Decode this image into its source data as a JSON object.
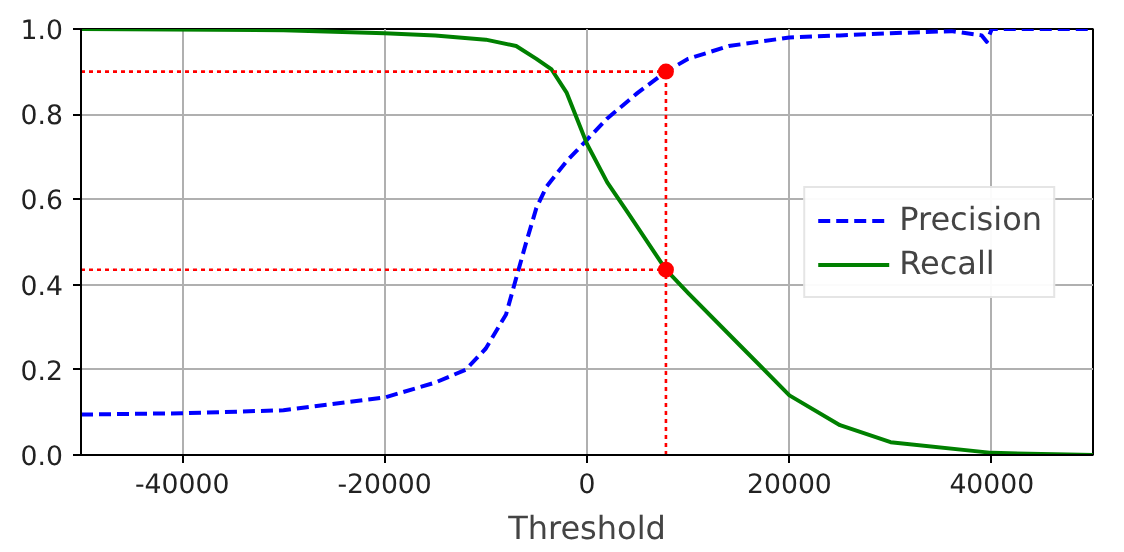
{
  "chart_data": {
    "type": "line",
    "xlabel": "Threshold",
    "xlim": [
      -50000,
      50000
    ],
    "ylim": [
      0,
      1
    ],
    "xticks": [
      -40000,
      -20000,
      0,
      20000,
      40000
    ],
    "yticks": [
      {
        "value": 0,
        "label": "0.0"
      },
      0.2,
      0.4,
      0.6,
      0.8,
      {
        "value": 1,
        "label": "1.0"
      }
    ],
    "grid": true,
    "legend": "right",
    "marker": "none",
    "series": [
      {
        "name": "Precision",
        "color": "#0000ff",
        "line_style": "dashed",
        "x": [
          -50000,
          -40000,
          -30000,
          -20000,
          -15000,
          -12000,
          -10000,
          -8000,
          -6000,
          -5000,
          -4000,
          -2000,
          0,
          2000,
          5000,
          7800,
          10000,
          14000,
          20000,
          25000,
          30000,
          36000,
          39000,
          39500,
          40000,
          50000
        ],
        "values": [
          0.095,
          0.098,
          0.105,
          0.135,
          0.17,
          0.2,
          0.25,
          0.33,
          0.5,
          0.58,
          0.63,
          0.69,
          0.74,
          0.79,
          0.85,
          0.9,
          0.93,
          0.96,
          0.98,
          0.985,
          0.99,
          0.995,
          0.985,
          0.97,
          1.0,
          1.0
        ]
      },
      {
        "name": "Recall",
        "color": "#008000",
        "line_style": "solid",
        "x": [
          -50000,
          -30000,
          -20000,
          -15000,
          -10000,
          -7000,
          -5000,
          -3500,
          -2000,
          0,
          2000,
          4000,
          7800,
          10000,
          15000,
          20000,
          25000,
          30000,
          40000,
          50000
        ],
        "values": [
          1.0,
          0.997,
          0.99,
          0.985,
          0.975,
          0.96,
          0.93,
          0.905,
          0.85,
          0.73,
          0.64,
          0.57,
          0.435,
          0.38,
          0.26,
          0.14,
          0.07,
          0.03,
          0.005,
          0.0
        ]
      },
      {
        "color": "#ff0000",
        "line_style": "dotted",
        "x": [
          -50000,
          7800
        ],
        "values": [
          0.9,
          0.9
        ]
      },
      {
        "color": "#ff0000",
        "line_style": "dotted",
        "x": [
          -50000,
          7800
        ],
        "values": [
          0.435,
          0.435
        ]
      },
      {
        "color": "#ff0000",
        "line_style": "dotted",
        "x": [
          7800,
          7800
        ],
        "values": [
          0,
          0.9
        ]
      },
      {
        "type": "scatter",
        "color": "#ff0000",
        "marker": "circle",
        "x": [
          7800,
          7800
        ],
        "values": [
          0.9,
          0.435
        ]
      }
    ]
  }
}
